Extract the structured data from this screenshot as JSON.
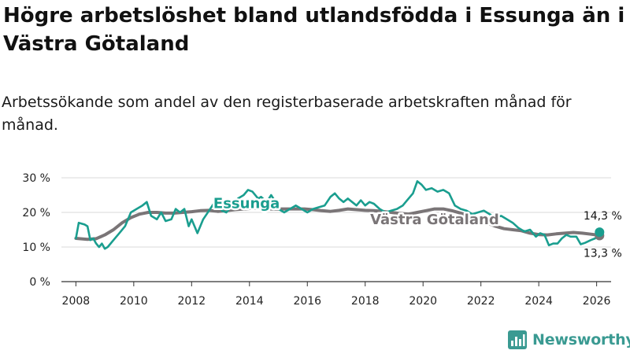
{
  "title": "Högre arbetslöshet bland utlandsfödda i Essunga än i Västra Götaland",
  "subtitle": "Arbetssökande som andel av den registerbaserade arbetskraften månad för månad.",
  "brand": {
    "name": "Newsworthy"
  },
  "colors": {
    "essunga": "#1a9e8f",
    "vastra": "#7a7577",
    "grid": "#d9d9d9",
    "axis": "#333333"
  },
  "chart_data": {
    "type": "line",
    "title": "Högre arbetslöshet bland utlandsfödda i Essunga än i Västra Götaland",
    "xlabel": "",
    "ylabel": "",
    "xlim": [
      2007.5,
      2026.5
    ],
    "ylim": [
      0,
      30
    ],
    "x_ticks": [
      2008,
      2010,
      2012,
      2014,
      2016,
      2018,
      2020,
      2022,
      2024,
      2026
    ],
    "x_tick_labels": [
      "2008",
      "2010",
      "2012",
      "2014",
      "2016",
      "2018",
      "2020",
      "2022",
      "2024",
      "2026"
    ],
    "y_ticks": [
      0,
      10,
      20,
      30
    ],
    "y_tick_labels": [
      "0 %",
      "10 %",
      "20 %",
      "30 %"
    ],
    "grid": true,
    "series": [
      {
        "name": "Västra Götaland",
        "label": "Västra Götaland",
        "color": "#7a7577",
        "end_label": "13,3 %",
        "end_value": 13.3,
        "points": [
          [
            2008.0,
            12.5
          ],
          [
            2008.4,
            12.2
          ],
          [
            2008.7,
            12.4
          ],
          [
            2009.0,
            13.5
          ],
          [
            2009.3,
            15.0
          ],
          [
            2009.6,
            17.0
          ],
          [
            2009.9,
            18.5
          ],
          [
            2010.2,
            19.5
          ],
          [
            2010.5,
            20.0
          ],
          [
            2010.8,
            20.0
          ],
          [
            2011.1,
            19.8
          ],
          [
            2011.4,
            19.8
          ],
          [
            2011.7,
            20.0
          ],
          [
            2012.0,
            20.2
          ],
          [
            2012.3,
            20.5
          ],
          [
            2012.6,
            20.6
          ],
          [
            2012.9,
            20.3
          ],
          [
            2013.2,
            20.5
          ],
          [
            2013.5,
            20.8
          ],
          [
            2013.8,
            21.0
          ],
          [
            2014.1,
            21.2
          ],
          [
            2014.4,
            21.2
          ],
          [
            2014.7,
            21.0
          ],
          [
            2015.0,
            21.0
          ],
          [
            2015.3,
            21.0
          ],
          [
            2015.6,
            21.0
          ],
          [
            2015.9,
            21.0
          ],
          [
            2016.2,
            20.8
          ],
          [
            2016.5,
            20.5
          ],
          [
            2016.8,
            20.3
          ],
          [
            2017.1,
            20.6
          ],
          [
            2017.4,
            21.0
          ],
          [
            2017.7,
            20.8
          ],
          [
            2018.0,
            20.6
          ],
          [
            2018.3,
            20.5
          ],
          [
            2018.6,
            20.3
          ],
          [
            2018.9,
            20.0
          ],
          [
            2019.2,
            19.7
          ],
          [
            2019.5,
            19.5
          ],
          [
            2019.8,
            20.0
          ],
          [
            2020.1,
            20.5
          ],
          [
            2020.4,
            21.0
          ],
          [
            2020.7,
            21.0
          ],
          [
            2021.0,
            20.5
          ],
          [
            2021.3,
            19.8
          ],
          [
            2021.6,
            19.0
          ],
          [
            2021.9,
            18.0
          ],
          [
            2022.2,
            17.0
          ],
          [
            2022.5,
            16.0
          ],
          [
            2022.8,
            15.3
          ],
          [
            2023.1,
            15.0
          ],
          [
            2023.4,
            14.7
          ],
          [
            2023.7,
            14.0
          ],
          [
            2024.0,
            13.6
          ],
          [
            2024.3,
            13.5
          ],
          [
            2024.6,
            13.8
          ],
          [
            2024.9,
            14.0
          ],
          [
            2025.2,
            14.2
          ],
          [
            2025.5,
            14.0
          ],
          [
            2025.8,
            13.7
          ],
          [
            2026.0,
            13.5
          ],
          [
            2026.1,
            13.3
          ]
        ]
      },
      {
        "name": "Essunga",
        "label": "Essunga",
        "color": "#1a9e8f",
        "end_label": "14,3 %",
        "end_value": 14.3,
        "points": [
          [
            2008.0,
            12.5
          ],
          [
            2008.1,
            17.0
          ],
          [
            2008.3,
            16.5
          ],
          [
            2008.4,
            16.0
          ],
          [
            2008.5,
            12.0
          ],
          [
            2008.6,
            12.5
          ],
          [
            2008.7,
            11.0
          ],
          [
            2008.8,
            10.0
          ],
          [
            2008.9,
            11.0
          ],
          [
            2009.0,
            9.5
          ],
          [
            2009.1,
            10.0
          ],
          [
            2009.3,
            12.0
          ],
          [
            2009.5,
            14.0
          ],
          [
            2009.7,
            16.0
          ],
          [
            2009.9,
            20.0
          ],
          [
            2010.1,
            21.0
          ],
          [
            2010.3,
            22.0
          ],
          [
            2010.45,
            23.0
          ],
          [
            2010.6,
            19.0
          ],
          [
            2010.8,
            18.0
          ],
          [
            2010.95,
            20.0
          ],
          [
            2011.1,
            17.5
          ],
          [
            2011.3,
            18.0
          ],
          [
            2011.45,
            21.0
          ],
          [
            2011.6,
            20.0
          ],
          [
            2011.75,
            21.0
          ],
          [
            2011.9,
            16.0
          ],
          [
            2012.0,
            18.0
          ],
          [
            2012.2,
            14.0
          ],
          [
            2012.4,
            18.0
          ],
          [
            2012.6,
            20.5
          ],
          [
            2012.8,
            23.0
          ],
          [
            2012.95,
            22.0
          ],
          [
            2013.05,
            20.5
          ],
          [
            2013.2,
            20.0
          ],
          [
            2013.4,
            22.0
          ],
          [
            2013.6,
            24.0
          ],
          [
            2013.8,
            25.0
          ],
          [
            2013.95,
            26.5
          ],
          [
            2014.1,
            26.0
          ],
          [
            2014.3,
            24.0
          ],
          [
            2014.4,
            24.5
          ],
          [
            2014.6,
            23.0
          ],
          [
            2014.75,
            25.0
          ],
          [
            2014.9,
            23.0
          ],
          [
            2015.0,
            21.0
          ],
          [
            2015.2,
            20.0
          ],
          [
            2015.4,
            21.0
          ],
          [
            2015.6,
            22.0
          ],
          [
            2015.8,
            21.0
          ],
          [
            2016.0,
            20.0
          ],
          [
            2016.2,
            21.0
          ],
          [
            2016.4,
            21.5
          ],
          [
            2016.6,
            22.0
          ],
          [
            2016.8,
            24.5
          ],
          [
            2016.95,
            25.5
          ],
          [
            2017.1,
            24.0
          ],
          [
            2017.25,
            23.0
          ],
          [
            2017.4,
            24.0
          ],
          [
            2017.55,
            23.0
          ],
          [
            2017.7,
            22.0
          ],
          [
            2017.85,
            23.5
          ],
          [
            2018.0,
            22.0
          ],
          [
            2018.15,
            23.0
          ],
          [
            2018.3,
            22.5
          ],
          [
            2018.5,
            21.0
          ],
          [
            2018.7,
            20.0
          ],
          [
            2018.9,
            20.5
          ],
          [
            2019.1,
            21.0
          ],
          [
            2019.3,
            22.0
          ],
          [
            2019.5,
            24.0
          ],
          [
            2019.65,
            25.5
          ],
          [
            2019.8,
            29.0
          ],
          [
            2019.95,
            28.0
          ],
          [
            2020.1,
            26.5
          ],
          [
            2020.3,
            27.0
          ],
          [
            2020.5,
            26.0
          ],
          [
            2020.7,
            26.5
          ],
          [
            2020.9,
            25.5
          ],
          [
            2021.1,
            22.0
          ],
          [
            2021.3,
            21.0
          ],
          [
            2021.5,
            20.5
          ],
          [
            2021.7,
            19.5
          ],
          [
            2021.9,
            20.0
          ],
          [
            2022.1,
            20.5
          ],
          [
            2022.3,
            19.5
          ],
          [
            2022.5,
            18.5
          ],
          [
            2022.7,
            19.0
          ],
          [
            2022.9,
            18.0
          ],
          [
            2023.1,
            17.0
          ],
          [
            2023.3,
            15.5
          ],
          [
            2023.5,
            14.5
          ],
          [
            2023.7,
            15.0
          ],
          [
            2023.9,
            13.0
          ],
          [
            2024.05,
            14.0
          ],
          [
            2024.2,
            13.5
          ],
          [
            2024.35,
            10.5
          ],
          [
            2024.5,
            11.0
          ],
          [
            2024.65,
            11.0
          ],
          [
            2024.8,
            12.5
          ],
          [
            2024.95,
            13.5
          ],
          [
            2025.1,
            13.0
          ],
          [
            2025.3,
            13.0
          ],
          [
            2025.45,
            10.8
          ],
          [
            2025.6,
            11.2
          ],
          [
            2025.8,
            12.0
          ],
          [
            2025.95,
            12.5
          ],
          [
            2026.1,
            14.3
          ]
        ]
      }
    ]
  }
}
